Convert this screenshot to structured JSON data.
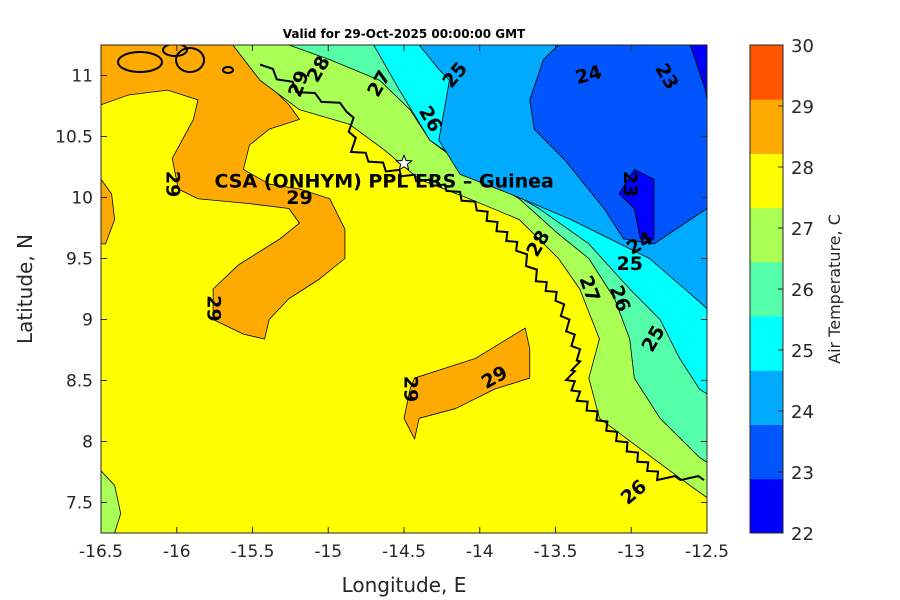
{
  "chart_data": {
    "type": "contour",
    "title": "Valid for 29-Oct-2025 00:00:00 GMT",
    "xlabel": "Longitude, E",
    "ylabel": "Latitude, N",
    "xlim": [
      -16.5,
      -12.5
    ],
    "ylim": [
      7.25,
      11.25
    ],
    "xticks": [
      "-16.5",
      "-16",
      "-15.5",
      "-15",
      "-14.5",
      "-14",
      "-13.5",
      "-13",
      "-12.5"
    ],
    "xtick_values": [
      -16.5,
      -16,
      -15.5,
      -15,
      -14.5,
      -14,
      -13.5,
      -13,
      -12.5
    ],
    "yticks": [
      "7.5",
      "8",
      "8.5",
      "9",
      "9.5",
      "10",
      "10.5",
      "11"
    ],
    "ytick_values": [
      7.5,
      8,
      8.5,
      9,
      9.5,
      10,
      10.5,
      11
    ],
    "station": {
      "label": "CSA (ONHYM) PPL ERS  – Guinea",
      "lon": -14.5,
      "lat": 10.28
    },
    "colorbar": {
      "label": "Air Temperature, C",
      "range": [
        22,
        30
      ],
      "ticks": [
        "22",
        "23",
        "24",
        "25",
        "26",
        "27",
        "28",
        "29",
        "30"
      ],
      "colors": [
        "#0000ff",
        "#0055ff",
        "#00aaff",
        "#00ffff",
        "#55ffaa",
        "#aaff55",
        "#ffff00",
        "#ffaa00",
        "#ff5500"
      ]
    },
    "background_color": "#ffff00",
    "regions": [
      {
        "level": 29,
        "color": "#ffaa00",
        "path": [
          [
            -16.5,
            11.25
          ],
          [
            -15.52,
            11.25
          ],
          [
            -15.42,
            10.96
          ],
          [
            -15.26,
            10.76
          ],
          [
            -15.19,
            10.64
          ],
          [
            -15.39,
            10.56
          ],
          [
            -15.52,
            10.43
          ],
          [
            -15.56,
            10.23
          ],
          [
            -15.39,
            10.11
          ],
          [
            -15.19,
            10.07
          ],
          [
            -14.99,
            9.99
          ],
          [
            -14.89,
            9.74
          ],
          [
            -14.89,
            9.5
          ],
          [
            -15.06,
            9.33
          ],
          [
            -15.26,
            9.17
          ],
          [
            -15.39,
            9.0
          ],
          [
            -15.42,
            8.84
          ],
          [
            -15.56,
            8.88
          ],
          [
            -15.76,
            9.0
          ],
          [
            -15.76,
            9.25
          ],
          [
            -15.59,
            9.45
          ],
          [
            -15.32,
            9.66
          ],
          [
            -15.19,
            9.79
          ],
          [
            -15.26,
            9.91
          ],
          [
            -15.52,
            9.95
          ],
          [
            -15.86,
            9.99
          ],
          [
            -15.99,
            10.07
          ],
          [
            -16.03,
            10.32
          ],
          [
            -15.89,
            10.64
          ],
          [
            -15.86,
            10.8
          ],
          [
            -16.06,
            10.88
          ],
          [
            -16.32,
            10.84
          ],
          [
            -16.5,
            10.76
          ]
        ]
      },
      {
        "level": 29,
        "color": "#ffaa00",
        "path": [
          [
            -16.5,
            10.15
          ],
          [
            -16.43,
            10.03
          ],
          [
            -16.41,
            9.82
          ],
          [
            -16.47,
            9.62
          ],
          [
            -16.5,
            9.62
          ]
        ]
      },
      {
        "level": 29,
        "color": "#ffaa00",
        "path": [
          [
            -14.43,
            8.52
          ],
          [
            -14.23,
            8.6
          ],
          [
            -14.03,
            8.68
          ],
          [
            -13.7,
            8.93
          ],
          [
            -13.67,
            8.76
          ],
          [
            -13.67,
            8.52
          ],
          [
            -13.9,
            8.43
          ],
          [
            -14.16,
            8.27
          ],
          [
            -14.4,
            8.19
          ],
          [
            -14.43,
            8.02
          ],
          [
            -14.5,
            8.19
          ],
          [
            -14.46,
            8.43
          ]
        ]
      },
      {
        "level": 27,
        "color": "#aaff55",
        "path": [
          [
            -16.5,
            7.76
          ],
          [
            -16.41,
            7.64
          ],
          [
            -16.37,
            7.41
          ],
          [
            -16.41,
            7.25
          ],
          [
            -16.5,
            7.25
          ]
        ]
      },
      {
        "level": 27,
        "color": "#aaff55",
        "path": [
          [
            -15.63,
            11.25
          ],
          [
            -15.45,
            10.96
          ],
          [
            -15.19,
            10.72
          ],
          [
            -14.86,
            10.6
          ],
          [
            -14.63,
            10.39
          ],
          [
            -14.4,
            10.15
          ],
          [
            -14.07,
            9.99
          ],
          [
            -13.74,
            9.82
          ],
          [
            -13.48,
            9.5
          ],
          [
            -13.34,
            9.25
          ],
          [
            -13.21,
            8.84
          ],
          [
            -13.28,
            8.52
          ],
          [
            -13.21,
            8.19
          ],
          [
            -12.94,
            7.94
          ],
          [
            -12.68,
            7.7
          ],
          [
            -12.5,
            7.54
          ],
          [
            -12.5,
            11.25
          ]
        ]
      },
      {
        "level": 26,
        "color": "#55ffaa",
        "path": [
          [
            -15.26,
            11.25
          ],
          [
            -14.99,
            11.13
          ],
          [
            -14.66,
            10.96
          ],
          [
            -14.46,
            10.72
          ],
          [
            -14.33,
            10.47
          ],
          [
            -14.07,
            10.23
          ],
          [
            -13.74,
            9.99
          ],
          [
            -13.48,
            9.7
          ],
          [
            -13.28,
            9.5
          ],
          [
            -13.11,
            9.17
          ],
          [
            -13.01,
            8.84
          ],
          [
            -12.98,
            8.52
          ],
          [
            -12.81,
            8.19
          ],
          [
            -12.55,
            7.87
          ],
          [
            -12.5,
            7.83
          ],
          [
            -12.5,
            11.25
          ]
        ]
      },
      {
        "level": 25,
        "color": "#00ffff",
        "path": [
          [
            -14.7,
            11.25
          ],
          [
            -14.53,
            10.88
          ],
          [
            -14.33,
            10.47
          ],
          [
            -14.0,
            10.19
          ],
          [
            -13.61,
            9.91
          ],
          [
            -13.28,
            9.62
          ],
          [
            -13.01,
            9.25
          ],
          [
            -12.81,
            9.0
          ],
          [
            -12.68,
            8.68
          ],
          [
            -12.55,
            8.43
          ],
          [
            -12.5,
            8.39
          ],
          [
            -12.5,
            11.25
          ]
        ]
      },
      {
        "level": 24,
        "color": "#00aaff",
        "path": [
          [
            -14.4,
            11.25
          ],
          [
            -14.27,
            11.05
          ],
          [
            -14.2,
            10.96
          ],
          [
            -14.27,
            10.47
          ],
          [
            -14.13,
            10.19
          ],
          [
            -13.8,
            10.03
          ],
          [
            -13.4,
            9.82
          ],
          [
            -13.14,
            9.66
          ],
          [
            -12.88,
            9.5
          ],
          [
            -12.61,
            9.21
          ],
          [
            -12.5,
            9.09
          ],
          [
            -12.5,
            11.25
          ]
        ]
      },
      {
        "level": 23,
        "color": "#0055ff",
        "path": [
          [
            -13.48,
            11.25
          ],
          [
            -13.58,
            11.13
          ],
          [
            -13.67,
            10.8
          ],
          [
            -13.64,
            10.56
          ],
          [
            -13.44,
            10.31
          ],
          [
            -13.31,
            10.11
          ],
          [
            -13.18,
            9.91
          ],
          [
            -13.05,
            9.66
          ],
          [
            -12.85,
            9.62
          ],
          [
            -12.5,
            9.91
          ],
          [
            -12.5,
            11.25
          ]
        ]
      },
      {
        "level": 22,
        "color": "#0000ff",
        "path": [
          [
            -12.61,
            11.25
          ],
          [
            -12.51,
            10.88
          ],
          [
            -12.5,
            10.8
          ],
          [
            -12.5,
            11.25
          ]
        ]
      },
      {
        "level": 22,
        "color": "#0000ff",
        "path": [
          [
            -12.98,
            10.23
          ],
          [
            -12.85,
            10.15
          ],
          [
            -12.85,
            9.66
          ],
          [
            -12.94,
            9.66
          ],
          [
            -12.98,
            9.91
          ],
          [
            -13.08,
            10.03
          ]
        ]
      }
    ],
    "coastline": [
      [
        -15.45,
        11.09
      ],
      [
        -15.19,
        10.88
      ],
      [
        -14.86,
        10.72
      ],
      [
        -14.83,
        10.39
      ],
      [
        -14.6,
        10.23
      ],
      [
        -14.4,
        10.15
      ],
      [
        -14.2,
        10.07
      ],
      [
        -14.0,
        9.91
      ],
      [
        -13.87,
        9.74
      ],
      [
        -13.74,
        9.58
      ],
      [
        -13.61,
        9.33
      ],
      [
        -13.48,
        9.17
      ],
      [
        -13.41,
        8.92
      ],
      [
        -13.34,
        8.68
      ],
      [
        -13.41,
        8.52
      ],
      [
        -13.34,
        8.35
      ],
      [
        -13.21,
        8.19
      ],
      [
        -13.08,
        8.02
      ],
      [
        -12.94,
        7.85
      ],
      [
        -12.81,
        7.7
      ],
      [
        -12.5,
        7.7
      ]
    ],
    "contour_labels": [
      {
        "text": "29",
        "lon": -15.19,
        "lat": 9.99,
        "rot": 0
      },
      {
        "text": "29",
        "lon": -16.03,
        "lat": 10.11,
        "rot": 90
      },
      {
        "text": "29",
        "lon": -15.76,
        "lat": 9.09,
        "rot": 90
      },
      {
        "text": "29",
        "lon": -14.46,
        "lat": 8.43,
        "rot": 90
      },
      {
        "text": "29",
        "lon": -13.9,
        "lat": 8.52,
        "rot": -30
      },
      {
        "text": "25",
        "lon": -14.16,
        "lat": 11.0,
        "rot": -50
      },
      {
        "text": "24",
        "lon": -13.28,
        "lat": 11.0,
        "rot": -15
      },
      {
        "text": "23",
        "lon": -12.77,
        "lat": 10.99,
        "rot": 60
      },
      {
        "text": "26",
        "lon": -14.33,
        "lat": 10.64,
        "rot": 60
      },
      {
        "text": "23",
        "lon": -13.01,
        "lat": 10.11,
        "rot": 90
      },
      {
        "text": "24",
        "lon": -12.94,
        "lat": 9.62,
        "rot": -30
      },
      {
        "text": "25",
        "lon": -13.01,
        "lat": 9.45,
        "rot": 0
      },
      {
        "text": "26",
        "lon": -13.08,
        "lat": 9.17,
        "rot": 70
      },
      {
        "text": "25",
        "lon": -12.85,
        "lat": 8.84,
        "rot": -60
      },
      {
        "text": "27",
        "lon": -13.28,
        "lat": 9.25,
        "rot": 70
      },
      {
        "text": "28",
        "lon": -13.61,
        "lat": 9.62,
        "rot": -60
      },
      {
        "text": "29",
        "lon": -15.19,
        "lat": 10.93,
        "rot": -70
      },
      {
        "text": "28",
        "lon": -15.06,
        "lat": 11.05,
        "rot": -60
      },
      {
        "text": "27",
        "lon": -14.66,
        "lat": 10.93,
        "rot": -60
      },
      {
        "text": "26",
        "lon": -12.98,
        "lat": 7.58,
        "rot": -40
      }
    ]
  }
}
